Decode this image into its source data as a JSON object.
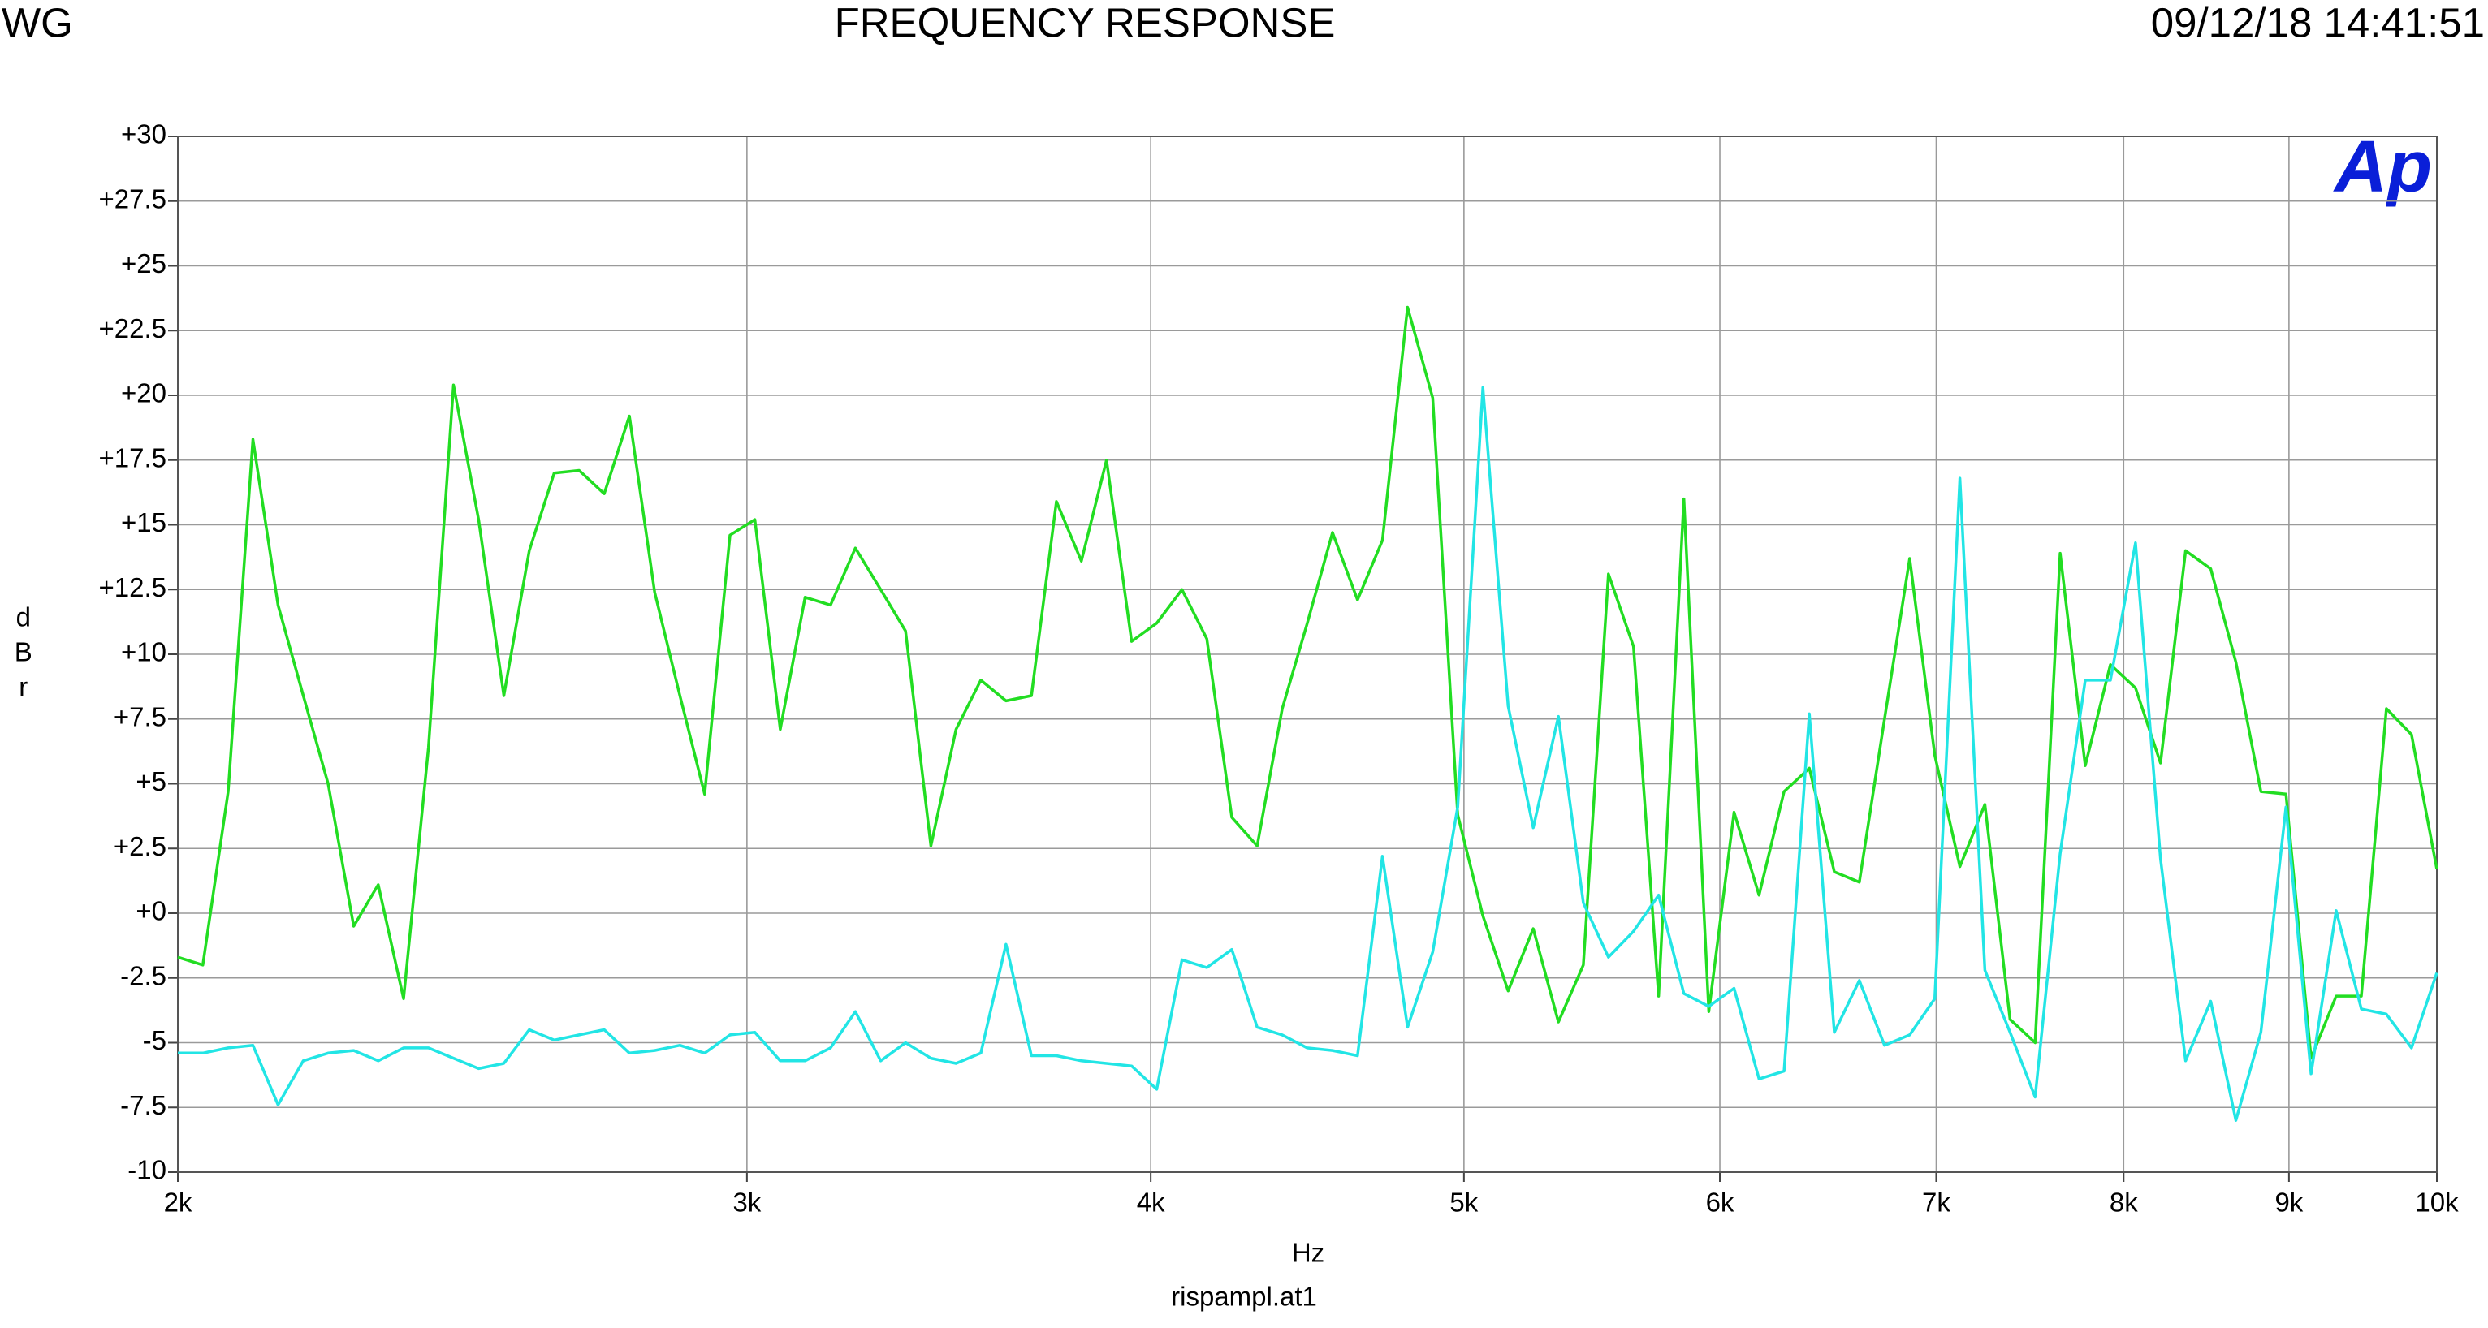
{
  "chart_data": {
    "type": "line",
    "title": "FREQUENCY RESPONSE",
    "header_left": "WG",
    "header_right": "09/12/18 14:41:51",
    "logo": "Ap",
    "x_label": "Hz",
    "y_label": "dBr",
    "footer": "rispampl.at1",
    "xscale": "log",
    "grid": true,
    "xlim": [
      2000,
      10000
    ],
    "xticks": [
      {
        "value": 2000,
        "label": "2k"
      },
      {
        "value": 3000,
        "label": "3k"
      },
      {
        "value": 4000,
        "label": "4k"
      },
      {
        "value": 5000,
        "label": "5k"
      },
      {
        "value": 6000,
        "label": "6k"
      },
      {
        "value": 7000,
        "label": "7k"
      },
      {
        "value": 8000,
        "label": "8k"
      },
      {
        "value": 9000,
        "label": "9k"
      },
      {
        "value": 10000,
        "label": "10k"
      }
    ],
    "ylim": [
      -10,
      30
    ],
    "yticks": [
      {
        "value": 30,
        "label": "+30"
      },
      {
        "value": 27.5,
        "label": "+27.5"
      },
      {
        "value": 25,
        "label": "+25"
      },
      {
        "value": 22.5,
        "label": "+22.5"
      },
      {
        "value": 20,
        "label": "+20"
      },
      {
        "value": 17.5,
        "label": "+17.5"
      },
      {
        "value": 15,
        "label": "+15"
      },
      {
        "value": 12.5,
        "label": "+12.5"
      },
      {
        "value": 10,
        "label": "+10"
      },
      {
        "value": 7.5,
        "label": "+7.5"
      },
      {
        "value": 5,
        "label": "+5"
      },
      {
        "value": 2.5,
        "label": "+2.5"
      },
      {
        "value": 0,
        "label": "+0"
      },
      -2.5,
      -5,
      -7.5,
      -10
    ],
    "x": [
      2000,
      2036,
      2073,
      2110,
      2148,
      2187,
      2226,
      2267,
      2307,
      2349,
      2391,
      2434,
      2478,
      2523,
      2569,
      2615,
      2662,
      2710,
      2759,
      2809,
      2860,
      2911,
      2964,
      3017,
      3072,
      3127,
      3184,
      3241,
      3300,
      3359,
      3420,
      3482,
      3544,
      3608,
      3674,
      3740,
      3807,
      3876,
      3946,
      4017,
      4090,
      4163,
      4238,
      4315,
      4393,
      4472,
      4553,
      4635,
      4718,
      4803,
      4890,
      4978,
      5068,
      5160,
      5253,
      5348,
      5444,
      5542,
      5642,
      5744,
      5848,
      5953,
      6061,
      6170,
      6281,
      6395,
      6510,
      6627,
      6747,
      6869,
      6993,
      7119,
      7247,
      7378,
      7511,
      7646,
      7784,
      7925,
      8068,
      8213,
      8361,
      8512,
      8666,
      8822,
      8981,
      9143,
      9308,
      9476,
      9647,
      9821,
      10000
    ],
    "series": [
      {
        "color": "#22dd22",
        "values": [
          -1.7,
          -2.0,
          4.7,
          18.3,
          11.9,
          8.4,
          5.0,
          -0.5,
          1.1,
          -3.3,
          6.4,
          20.4,
          15.2,
          8.4,
          14.0,
          17.0,
          17.1,
          16.2,
          19.2,
          12.4,
          8.4,
          4.6,
          14.6,
          15.2,
          7.1,
          12.2,
          11.9,
          14.1,
          12.5,
          10.9,
          2.6,
          7.1,
          9.0,
          8.2,
          8.4,
          15.9,
          13.6,
          17.5,
          10.5,
          11.2,
          12.5,
          10.6,
          3.7,
          2.6,
          7.9,
          11.2,
          14.7,
          12.1,
          14.4,
          23.4,
          19.9,
          3.8,
          -0.1,
          -3.0,
          -0.6,
          -4.2,
          -2.0,
          13.1,
          10.3,
          -3.2,
          16.0,
          -3.8,
          3.9,
          0.7,
          4.7,
          5.6,
          1.6,
          1.2,
          7.5,
          13.7,
          6.1,
          1.8,
          4.2,
          -4.1,
          -5.0,
          13.9,
          5.7,
          9.6,
          8.7,
          5.8,
          14.0,
          13.3,
          9.7,
          4.7,
          4.6,
          -5.6,
          -3.2,
          -3.2,
          7.9,
          6.9,
          1.7
        ]
      },
      {
        "color": "#22e5e5",
        "values": [
          -5.4,
          -5.4,
          -5.2,
          -5.1,
          -7.4,
          -5.7,
          -5.4,
          -5.3,
          -5.7,
          -5.2,
          -5.2,
          -5.6,
          -6.0,
          -5.8,
          -4.5,
          -4.9,
          -4.7,
          -4.5,
          -5.4,
          -5.3,
          -5.1,
          -5.4,
          -4.7,
          -4.6,
          -5.7,
          -5.7,
          -5.2,
          -3.8,
          -5.7,
          -5.0,
          -5.6,
          -5.8,
          -5.4,
          -1.2,
          -5.5,
          -5.5,
          -5.7,
          -5.8,
          -5.9,
          -6.8,
          -1.8,
          -2.1,
          -1.4,
          -4.4,
          -4.7,
          -5.2,
          -5.3,
          -5.5,
          2.2,
          -4.4,
          -1.5,
          4.1,
          20.3,
          8.0,
          3.3,
          7.6,
          0.4,
          -1.7,
          -0.7,
          0.7,
          -3.1,
          -3.6,
          -2.9,
          -6.4,
          -6.1,
          7.7,
          -4.6,
          -2.6,
          -5.1,
          -4.7,
          -3.3,
          16.8,
          -2.2,
          -4.6,
          -7.1,
          2.3,
          9.0,
          9.0,
          14.3,
          2.1,
          -5.7,
          -3.4,
          -8.0,
          -4.6,
          4.1,
          -6.2,
          0.1,
          -3.7,
          -3.9,
          -5.2,
          -2.3
        ]
      }
    ]
  }
}
